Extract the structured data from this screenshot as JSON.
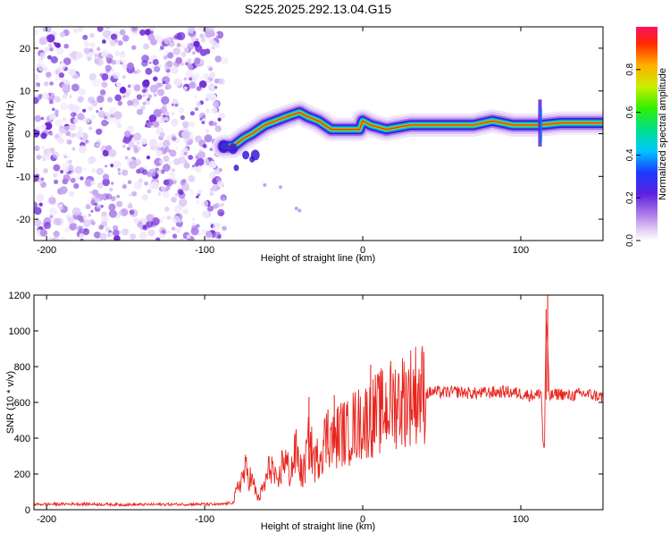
{
  "title": "S225.2025.292.13.04.G15",
  "chart_data": [
    {
      "type": "heatmap",
      "xlabel": "Height of straight line (km)",
      "ylabel": "Frequency (Hz)",
      "xlim": [
        -208,
        152
      ],
      "ylim": [
        -25,
        25
      ],
      "xticks": [
        -200,
        -100,
        0,
        100
      ],
      "yticks": [
        -20,
        -10,
        0,
        10,
        20
      ],
      "noise_region_x": [
        -208,
        -88
      ],
      "ridge": [
        {
          "x": -88,
          "y": -3
        },
        {
          "x": -82,
          "y": -3
        },
        {
          "x": -75,
          "y": -1
        },
        {
          "x": -70,
          "y": 0
        },
        {
          "x": -62,
          "y": 2
        },
        {
          "x": -55,
          "y": 3
        },
        {
          "x": -48,
          "y": 4
        },
        {
          "x": -40,
          "y": 5
        },
        {
          "x": -35,
          "y": 4
        },
        {
          "x": -28,
          "y": 3
        },
        {
          "x": -20,
          "y": 1
        },
        {
          "x": -10,
          "y": 1
        },
        {
          "x": -2,
          "y": 1
        },
        {
          "x": 0,
          "y": 3
        },
        {
          "x": 5,
          "y": 2
        },
        {
          "x": 15,
          "y": 1
        },
        {
          "x": 30,
          "y": 2
        },
        {
          "x": 50,
          "y": 2
        },
        {
          "x": 70,
          "y": 2
        },
        {
          "x": 82,
          "y": 3
        },
        {
          "x": 95,
          "y": 2
        },
        {
          "x": 105,
          "y": 2
        },
        {
          "x": 112,
          "y": 2
        },
        {
          "x": 125,
          "y": 2.5
        },
        {
          "x": 152,
          "y": 2.5
        }
      ],
      "colorbar": {
        "label": "Normalized spectral amplitude",
        "range": [
          0,
          1
        ],
        "ticks": [
          "0.0",
          "0.2",
          "0.4",
          "0.6",
          "0.8"
        ]
      }
    },
    {
      "type": "line",
      "xlabel": "Height of straight line (km)",
      "ylabel": "SNR (10 * v/v)",
      "xlim": [
        -208,
        152
      ],
      "ylim": [
        0,
        1200
      ],
      "xticks": [
        -200,
        -100,
        0,
        100
      ],
      "yticks": [
        0,
        200,
        400,
        600,
        800,
        1000,
        1200
      ],
      "color": "#e8251e",
      "series": [
        {
          "name": "SNR",
          "x": [
            -208,
            -180,
            -150,
            -120,
            -100,
            -90,
            -82,
            -78,
            -74,
            -70,
            -66,
            -62,
            -58,
            -54,
            -50,
            -46,
            -42,
            -38,
            -34,
            -30,
            -26,
            -22,
            -18,
            -14,
            -10,
            -6,
            -2,
            2,
            6,
            10,
            14,
            18,
            22,
            26,
            30,
            35,
            40,
            45,
            50,
            60,
            70,
            80,
            90,
            100,
            105,
            110,
            113,
            114,
            115,
            116,
            117,
            118,
            120,
            125,
            130,
            140,
            152
          ],
          "values": [
            30,
            32,
            28,
            30,
            31,
            29,
            40,
            150,
            220,
            160,
            60,
            140,
            260,
            120,
            300,
            200,
            330,
            180,
            380,
            260,
            350,
            420,
            380,
            440,
            420,
            470,
            480,
            500,
            520,
            540,
            560,
            590,
            610,
            620,
            640,
            660,
            650,
            660,
            655,
            660,
            650,
            655,
            660,
            650,
            640,
            640,
            660,
            380,
            340,
            1080,
            900,
            630,
            640,
            650,
            635,
            650,
            630
          ]
        }
      ],
      "spikes": [
        {
          "x": -34,
          "y": 630
        },
        {
          "x": -22,
          "y": 560
        },
        {
          "x": -18,
          "y": 640
        },
        {
          "x": 5,
          "y": 810
        },
        {
          "x": 116,
          "y": 1120
        },
        {
          "x": 117,
          "y": 1200
        }
      ]
    }
  ]
}
